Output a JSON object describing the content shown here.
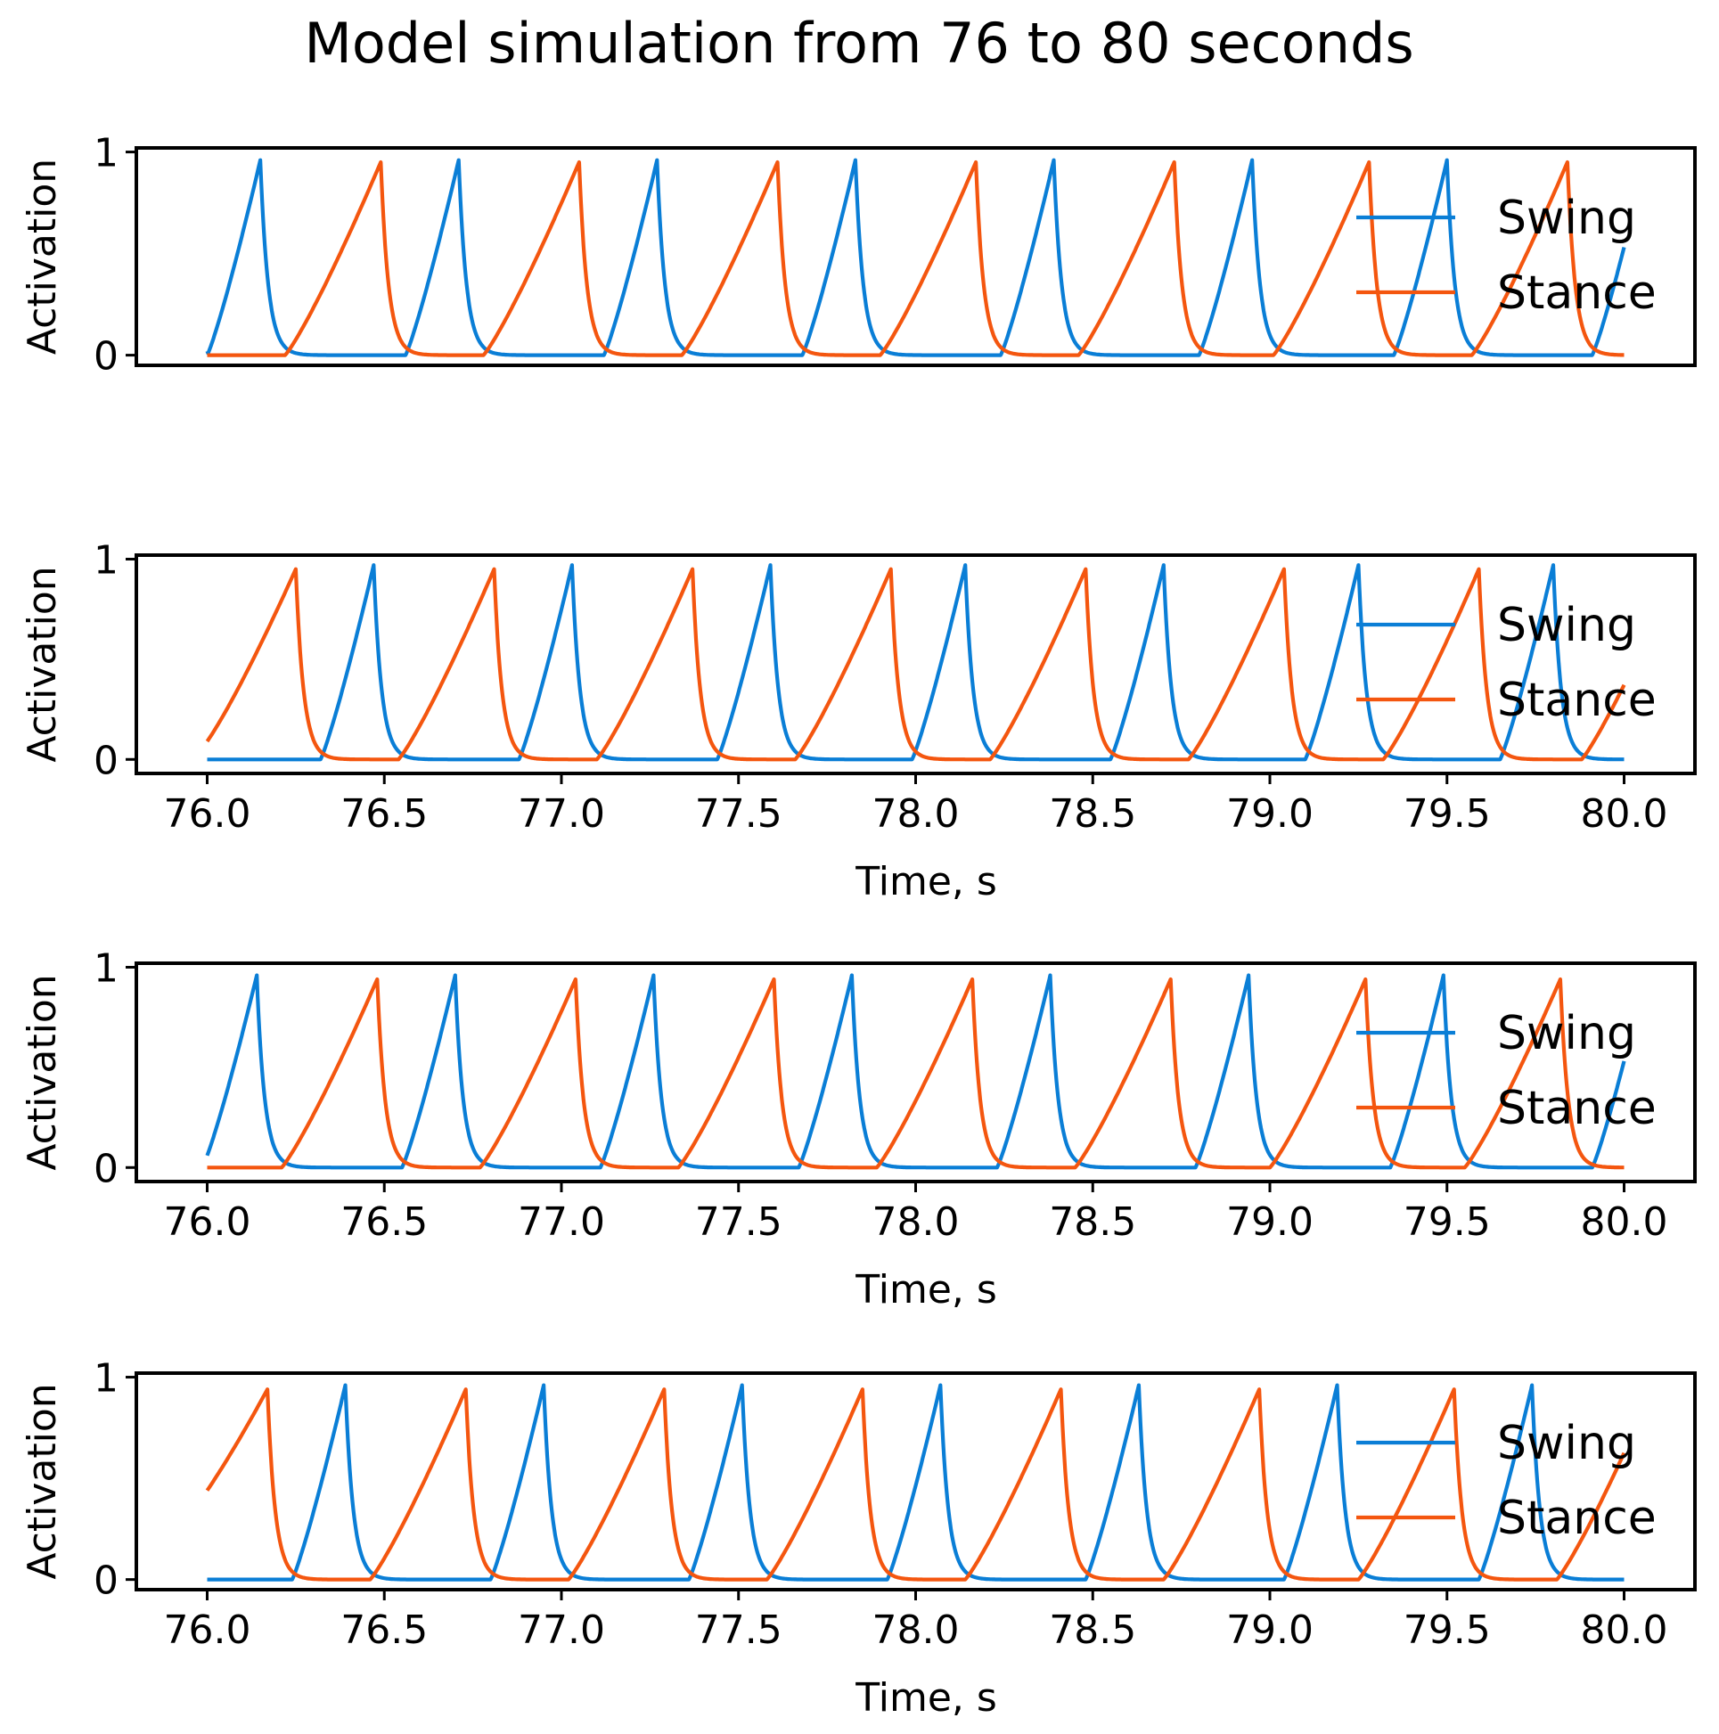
{
  "figure": {
    "title": "Model simulation from 76 to 80 seconds"
  },
  "colors": {
    "swing": "#0a7ed6",
    "stance": "#f4560f"
  },
  "chart_data": [
    {
      "type": "line",
      "xlabel": "",
      "ylabel": "Activation",
      "xlim": [
        75.8,
        80.2
      ],
      "ylim": [
        -0.05,
        1.02
      ],
      "xticks_shown": false,
      "xticks": [],
      "yticks": [
        "0",
        "1"
      ],
      "legend": {
        "entries": [
          "Swing",
          "Stance"
        ],
        "position": "right"
      },
      "series": [
        {
          "name": "Swing",
          "color": "#0a7ed6",
          "peaks": [
            76.15,
            76.71,
            77.27,
            77.83,
            78.39,
            78.95,
            79.5,
            80.06
          ],
          "peak_value": 0.96,
          "rise": 0.15,
          "start_value": 0.02
        },
        {
          "name": "Stance",
          "color": "#f4560f",
          "peaks": [
            76.49,
            77.05,
            77.61,
            78.17,
            78.73,
            79.28,
            79.84
          ],
          "peak_value": 0.95,
          "rise": 0.27,
          "start_value": 0.0
        }
      ]
    },
    {
      "type": "line",
      "xlabel": "Time, s",
      "ylabel": "Activation",
      "xlim": [
        75.8,
        80.2
      ],
      "ylim": [
        -0.07,
        1.02
      ],
      "xticks_shown": true,
      "xticks": [
        "76.0",
        "76.5",
        "77.0",
        "77.5",
        "78.0",
        "78.5",
        "79.0",
        "79.5",
        "80.0"
      ],
      "yticks": [
        "0",
        "1"
      ],
      "legend": {
        "entries": [
          "Swing",
          "Stance"
        ],
        "position": "right"
      },
      "series": [
        {
          "name": "Swing",
          "color": "#0a7ed6",
          "peaks": [
            76.47,
            77.03,
            77.59,
            78.14,
            78.7,
            79.25,
            79.8
          ],
          "peak_value": 0.97,
          "rise": 0.15,
          "start_value": 0.0
        },
        {
          "name": "Stance",
          "color": "#f4560f",
          "peaks": [
            76.25,
            76.81,
            77.37,
            77.93,
            78.48,
            79.04,
            79.59,
            80.15
          ],
          "peak_value": 0.95,
          "rise": 0.27,
          "start_value": 0.09
        }
      ]
    },
    {
      "type": "line",
      "xlabel": "Time, s",
      "ylabel": "Activation",
      "xlim": [
        75.8,
        80.2
      ],
      "ylim": [
        -0.07,
        1.02
      ],
      "xticks_shown": true,
      "xticks": [
        "76.0",
        "76.5",
        "77.0",
        "77.5",
        "78.0",
        "78.5",
        "79.0",
        "79.5",
        "80.0"
      ],
      "yticks": [
        "0",
        "1"
      ],
      "legend": {
        "entries": [
          "Swing",
          "Stance"
        ],
        "position": "right"
      },
      "series": [
        {
          "name": "Swing",
          "color": "#0a7ed6",
          "peaks": [
            76.14,
            76.7,
            77.26,
            77.82,
            78.38,
            78.94,
            79.49,
            80.06
          ],
          "peak_value": 0.96,
          "rise": 0.15,
          "start_value": 0.06
        },
        {
          "name": "Stance",
          "color": "#f4560f",
          "peaks": [
            76.48,
            77.04,
            77.6,
            78.16,
            78.72,
            79.27,
            79.82
          ],
          "peak_value": 0.94,
          "rise": 0.27,
          "start_value": 0.0
        }
      ]
    },
    {
      "type": "line",
      "xlabel": "Time, s",
      "ylabel": "Activation",
      "xlim": [
        75.8,
        80.2
      ],
      "ylim": [
        -0.05,
        1.02
      ],
      "xticks_shown": true,
      "xticks": [
        "76.0",
        "76.5",
        "77.0",
        "77.5",
        "78.0",
        "78.5",
        "79.0",
        "79.5",
        "80.0"
      ],
      "yticks": [
        "0",
        "1"
      ],
      "legend": {
        "entries": [
          "Swing",
          "Stance"
        ],
        "position": "right"
      },
      "series": [
        {
          "name": "Swing",
          "color": "#0a7ed6",
          "peaks": [
            76.39,
            76.95,
            77.51,
            78.07,
            78.63,
            79.19,
            79.74
          ],
          "peak_value": 0.96,
          "rise": 0.15,
          "start_value": 0.0
        },
        {
          "name": "Stance",
          "color": "#f4560f",
          "peaks": [
            76.17,
            76.73,
            77.29,
            77.85,
            78.41,
            78.97,
            79.52,
            80.08
          ],
          "peak_value": 0.94,
          "rise": 0.27,
          "start_value": 0.44
        }
      ]
    }
  ]
}
